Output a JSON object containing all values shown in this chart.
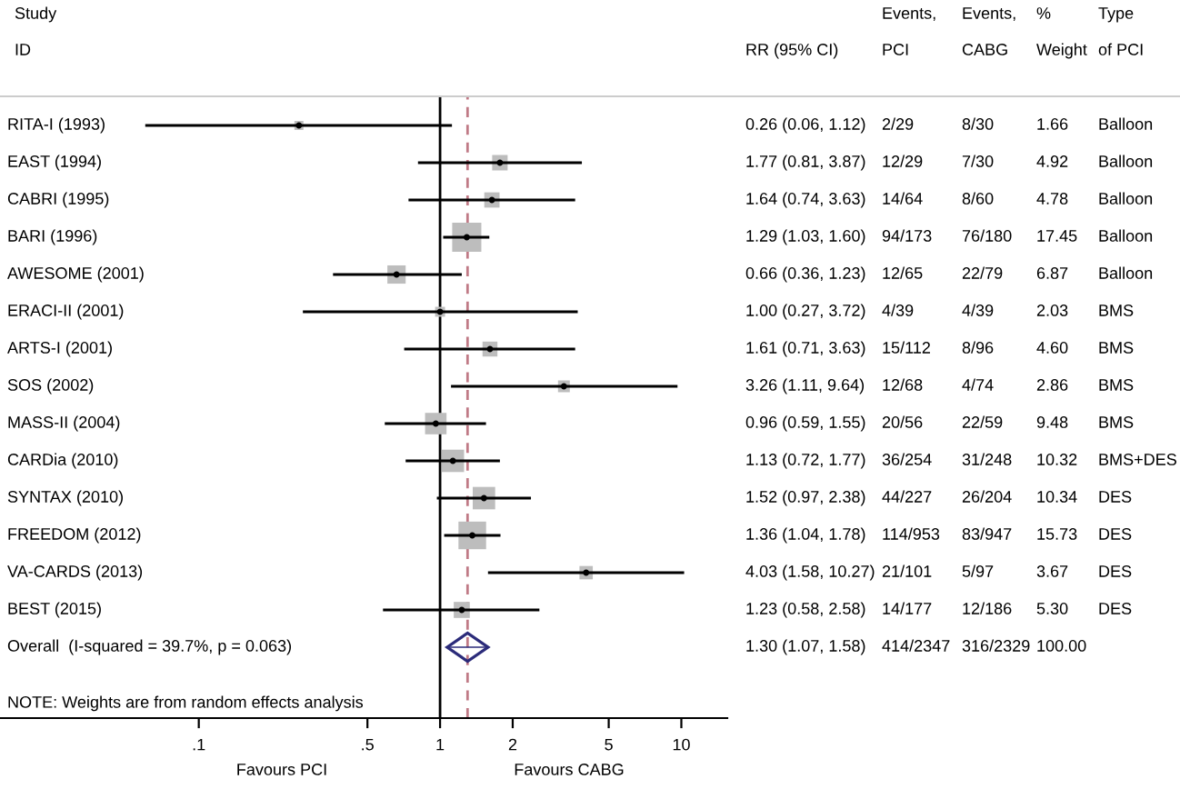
{
  "chart_data": {
    "type": "bubble",
    "orientation": "horizontal",
    "log": "x",
    "legend": false,
    "grid": false,
    "categories": [
      "RITA-I (1993)",
      "EAST (1994)",
      "CABRI (1995)",
      "BARI (1996)",
      "AWESOME (2001)",
      "ERACI-II (2001)",
      "ARTS-I (2001)",
      "SOS (2002)",
      "MASS-II (2004)",
      "CARDia (2010)",
      "SYNTAX (2010)",
      "FREEDOM (2012)",
      "VA-CARDS (2013)",
      "BEST (2015)",
      "Overall  (I-squared = 39.7%, p = 0.063)"
    ],
    "series": [
      {
        "color": "#bdbdbd",
        "marker": "square",
        "values": [
          0.26,
          1.77,
          1.64,
          1.29,
          0.66,
          1.0,
          1.61,
          3.26,
          0.96,
          1.13,
          1.52,
          1.36,
          4.03,
          1.23,
          null
        ],
        "errors": [
          [
            0.06,
            1.12
          ],
          [
            0.81,
            3.87
          ],
          [
            0.74,
            3.63
          ],
          [
            1.03,
            1.6
          ],
          [
            0.36,
            1.23
          ],
          [
            0.27,
            3.72
          ],
          [
            0.71,
            3.63
          ],
          [
            1.11,
            9.64
          ],
          [
            0.59,
            1.55
          ],
          [
            0.72,
            1.77
          ],
          [
            0.97,
            2.38
          ],
          [
            1.04,
            1.78
          ],
          [
            1.58,
            10.27
          ],
          [
            0.58,
            2.58
          ],
          null
        ],
        "sizes": [
          0.095,
          0.282,
          0.274,
          1,
          0.394,
          0.116,
          0.264,
          0.164,
          0.543,
          0.591,
          0.593,
          0.901,
          0.21,
          0.304,
          null
        ]
      },
      {
        "color": "#2b2b7a",
        "marker": "diamond",
        "values": [
          null,
          null,
          null,
          null,
          null,
          null,
          null,
          null,
          null,
          null,
          null,
          null,
          null,
          null,
          1.3
        ],
        "errors": [
          null,
          null,
          null,
          null,
          null,
          null,
          null,
          null,
          null,
          null,
          null,
          null,
          null,
          null,
          [
            1.07,
            1.58
          ]
        ]
      }
    ],
    "xlim": [
      0.015,
      15.5
    ],
    "xticks": [
      {
        "value": 0.1,
        "label": ".1"
      },
      {
        "value": 0.5,
        "label": ".5"
      },
      1,
      2,
      5,
      10
    ],
    "ref_lines": [
      {
        "axis": "x",
        "value": 1,
        "color": "#000000",
        "line_style": "solid"
      },
      {
        "axis": "x",
        "value": 1.3,
        "color": "#c07a86",
        "line_style": "dashed"
      }
    ],
    "annotations": [
      "Study",
      "ID",
      "RR (95% CI)",
      "Events,",
      "PCI",
      "Events,",
      "CABG",
      "%",
      "Weight",
      "Type",
      "of PCI",
      "0.26 (0.06, 1.12)",
      "2/29",
      "8/30",
      "1.66",
      "Balloon",
      "1.77 (0.81, 3.87)",
      "12/29",
      "7/30",
      "4.92",
      "Balloon",
      "1.64 (0.74, 3.63)",
      "14/64",
      "8/60",
      "4.78",
      "Balloon",
      "1.29 (1.03, 1.60)",
      "94/173",
      "76/180",
      "17.45",
      "Balloon",
      "0.66 (0.36, 1.23)",
      "12/65",
      "22/79",
      "6.87",
      "Balloon",
      "1.00 (0.27, 3.72)",
      "4/39",
      "4/39",
      "2.03",
      "BMS",
      "1.61 (0.71, 3.63)",
      "15/112",
      "8/96",
      "4.60",
      "BMS",
      "3.26 (1.11, 9.64)",
      "12/68",
      "4/74",
      "2.86",
      "BMS",
      "0.96 (0.59, 1.55)",
      "20/56",
      "22/59",
      "9.48",
      "BMS",
      "1.13 (0.72, 1.77)",
      "36/254",
      "31/248",
      "10.32",
      "BMS+DES",
      "1.52 (0.97, 2.38)",
      "44/227",
      "26/204",
      "10.34",
      "DES",
      "1.36 (1.04, 1.78)",
      "114/953",
      "83/947",
      "15.73",
      "DES",
      "4.03 (1.58, 10.27)",
      "21/101",
      "5/97",
      "3.67",
      "DES",
      "1.23 (0.58, 2.58)",
      "14/177",
      "12/186",
      "5.30",
      "DES",
      "1.30 (1.07, 1.58)",
      "414/2347",
      "316/2329",
      "100.00",
      "NOTE: Weights are from random effects analysis",
      "Favours PCI",
      "Favours CABG"
    ]
  }
}
